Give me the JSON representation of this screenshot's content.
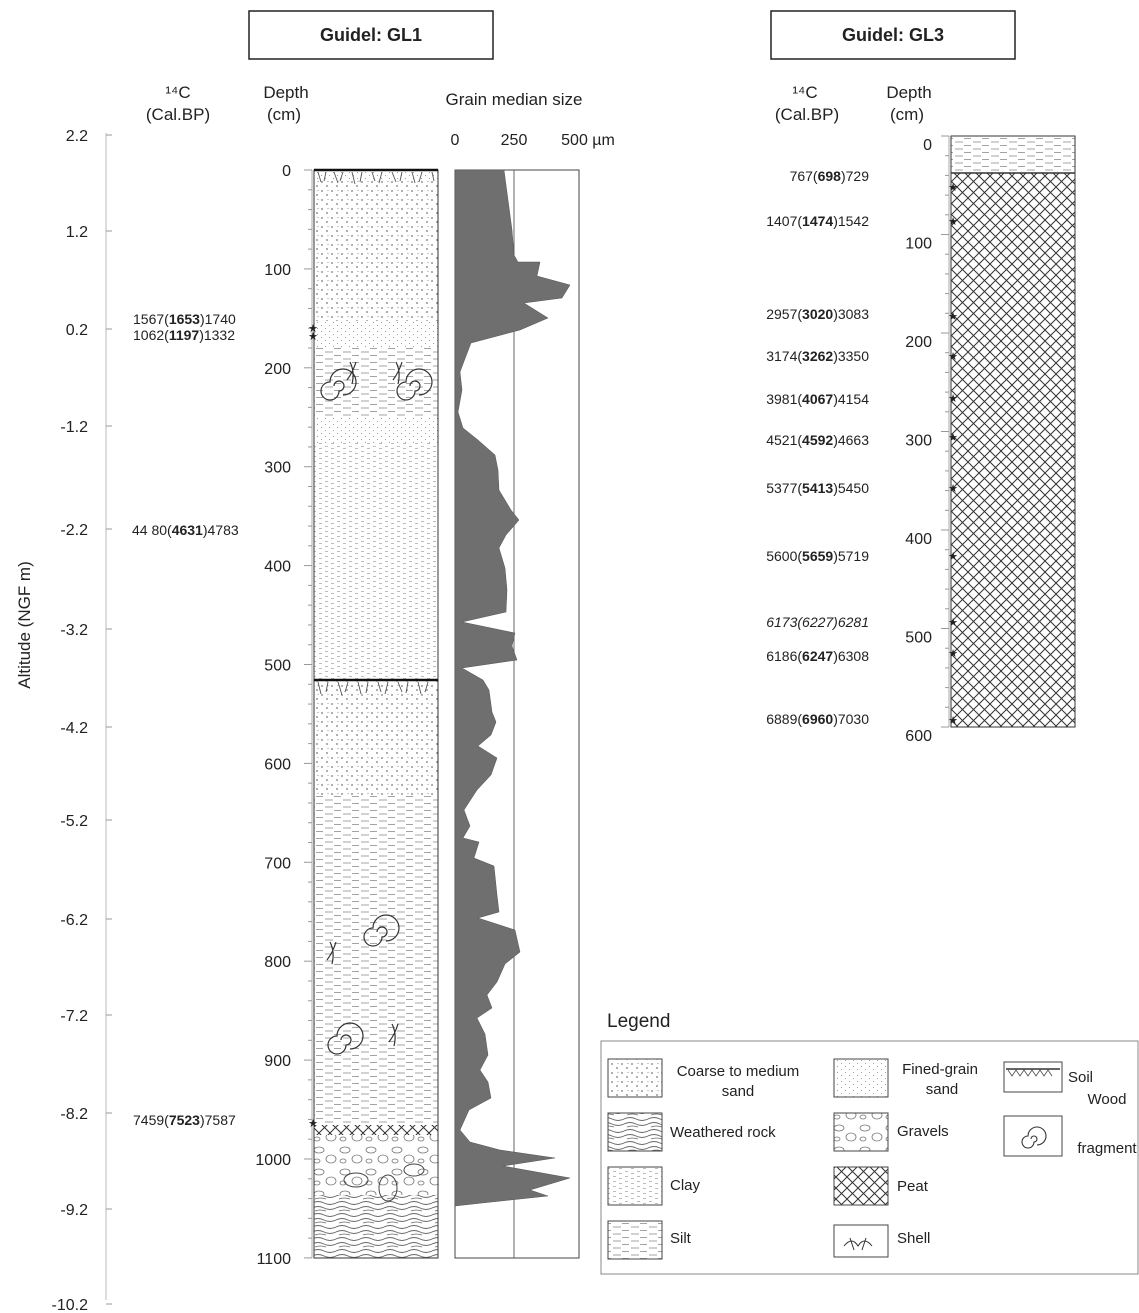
{
  "gl1": {
    "title": "Guidel: GL1",
    "c14_header": [
      "¹⁴C",
      "(Cal.BP)"
    ],
    "depth_header": [
      "Depth",
      "(cm)"
    ],
    "grain_header": "Grain median size",
    "grain_ticks": [
      "0",
      "250",
      "500 µm"
    ],
    "y_axis_label": "Altitude (NGF m)",
    "altitude_ticks": [
      "2.2",
      "1.2",
      "0.2",
      "-1.2",
      "-2.2",
      "-3.2",
      "-4.2",
      "-5.2",
      "-6.2",
      "-7.2",
      "-8.2",
      "-9.2",
      "-10.2"
    ],
    "depth_ticks": [
      "0",
      "100",
      "200",
      "300",
      "400",
      "500",
      "600",
      "700",
      "800",
      "900",
      "1000",
      "1100"
    ],
    "dates": [
      {
        "pre": "1567(",
        "bold": "1653",
        "post": ")1740"
      },
      {
        "pre": "1062(",
        "bold": "1197",
        "post": ")1332"
      },
      {
        "pre": "44 80(",
        "bold": "4631",
        "post": ")4783"
      },
      {
        "pre": "7459(",
        "bold": "7523",
        "post": ")7587"
      }
    ]
  },
  "gl3": {
    "title": "Guidel: GL3",
    "c14_header": [
      "¹⁴C",
      "(Cal.BP)"
    ],
    "depth_header": [
      "Depth",
      "(cm)"
    ],
    "depth_ticks": [
      "0",
      "100",
      "200",
      "300",
      "400",
      "500",
      "600"
    ],
    "dates": [
      {
        "pre": "767(",
        "bold": "698",
        "post": ")729",
        "italic": false
      },
      {
        "pre": "1407(",
        "bold": "1474",
        "post": ")1542",
        "italic": false
      },
      {
        "pre": "2957(",
        "bold": "3020",
        "post": ")3083",
        "italic": false
      },
      {
        "pre": "3174(",
        "bold": "3262",
        "post": ")3350",
        "italic": false
      },
      {
        "pre": "3981(",
        "bold": "4067",
        "post": ")4154",
        "italic": false
      },
      {
        "pre": "4521(",
        "bold": "4592",
        "post": ")4663",
        "italic": false
      },
      {
        "pre": "5377(",
        "bold": "5413",
        "post": ")5450",
        "italic": false
      },
      {
        "pre": "5600(",
        "bold": "5659",
        "post": ")5719",
        "italic": false
      },
      {
        "pre": "6173(6227)6281",
        "bold": "",
        "post": "",
        "italic": true
      },
      {
        "pre": "6186(",
        "bold": "6247",
        "post": ")6308",
        "italic": false
      },
      {
        "pre": "6889(",
        "bold": "6960",
        "post": ")7030",
        "italic": false
      }
    ]
  },
  "legend": {
    "title": "Legend",
    "items": [
      {
        "label": [
          "Coarse to medium",
          "sand"
        ],
        "pattern": "coarse-sand"
      },
      {
        "label": [
          "Fined-grain",
          "sand"
        ],
        "pattern": "fine-sand"
      },
      {
        "label": [
          "Soil"
        ],
        "pattern": "soil"
      },
      {
        "label": [
          "Weathered rock"
        ],
        "pattern": "weathered-rock"
      },
      {
        "label": [
          "Gravels"
        ],
        "pattern": "gravels"
      },
      {
        "label": [
          "Wood",
          "fragment"
        ],
        "pattern": "wood"
      },
      {
        "label": [
          "Clay"
        ],
        "pattern": "clay"
      },
      {
        "label": [
          "Peat"
        ],
        "pattern": "peat"
      },
      {
        "label": [
          "Silt"
        ],
        "pattern": "silt"
      },
      {
        "label": [
          "Shell"
        ],
        "pattern": "shell"
      }
    ]
  },
  "colors": {
    "ink": "#222222",
    "grain_fill": "#6f6f6f",
    "peat": "#333333"
  }
}
